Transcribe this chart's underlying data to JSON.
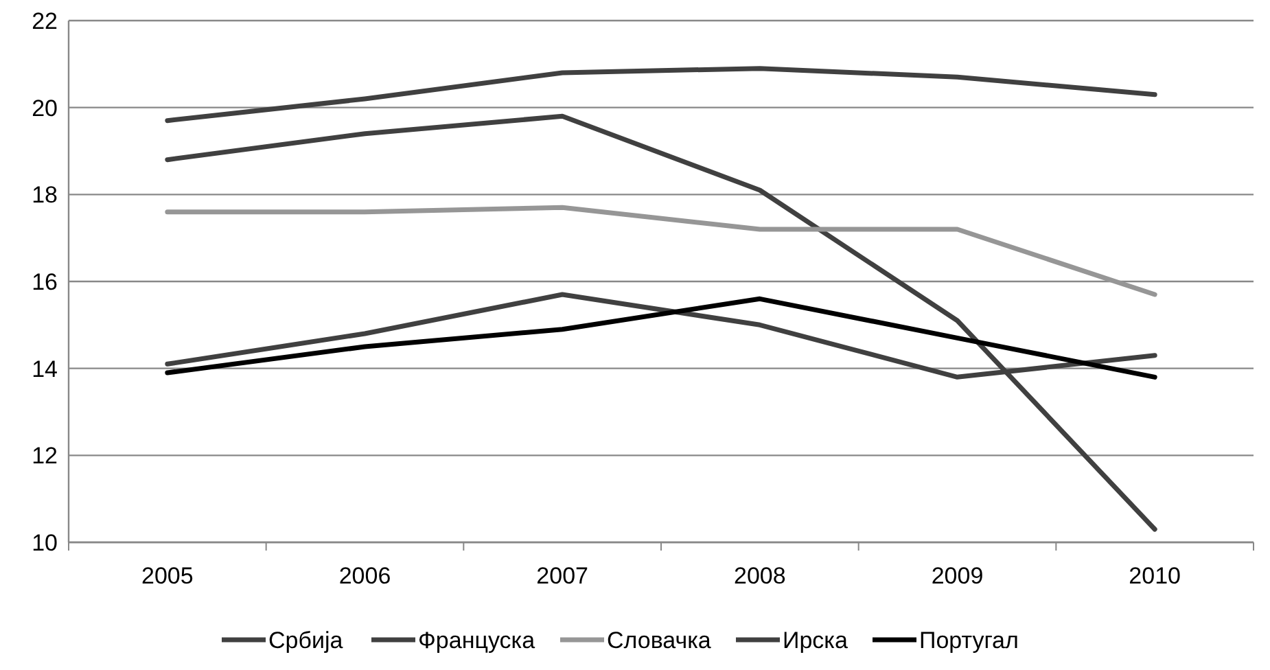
{
  "chart_data": {
    "type": "line",
    "categories": [
      "2005",
      "2006",
      "2007",
      "2008",
      "2009",
      "2010"
    ],
    "series": [
      {
        "name": "Србија",
        "color": "#404040",
        "values": [
          19.7,
          20.2,
          20.8,
          20.9,
          20.7,
          20.3
        ]
      },
      {
        "name": "Француска",
        "color": "#404040",
        "values": [
          18.8,
          19.4,
          19.8,
          18.1,
          15.1,
          10.3
        ]
      },
      {
        "name": "Словачка",
        "color": "#969696",
        "values": [
          17.6,
          17.6,
          17.7,
          17.2,
          17.2,
          15.7
        ]
      },
      {
        "name": "Ирска",
        "color": "#404040",
        "values": [
          14.1,
          14.8,
          15.7,
          15.0,
          13.8,
          14.3
        ]
      },
      {
        "name": "Португал",
        "color": "#000000",
        "values": [
          13.9,
          14.5,
          14.9,
          15.6,
          14.7,
          13.8
        ]
      }
    ],
    "ylim": [
      10,
      22
    ],
    "yticks": [
      10,
      12,
      14,
      16,
      18,
      20,
      22
    ],
    "grid": "y",
    "legend": "bottom",
    "marker": "none",
    "line_style": "solid"
  }
}
